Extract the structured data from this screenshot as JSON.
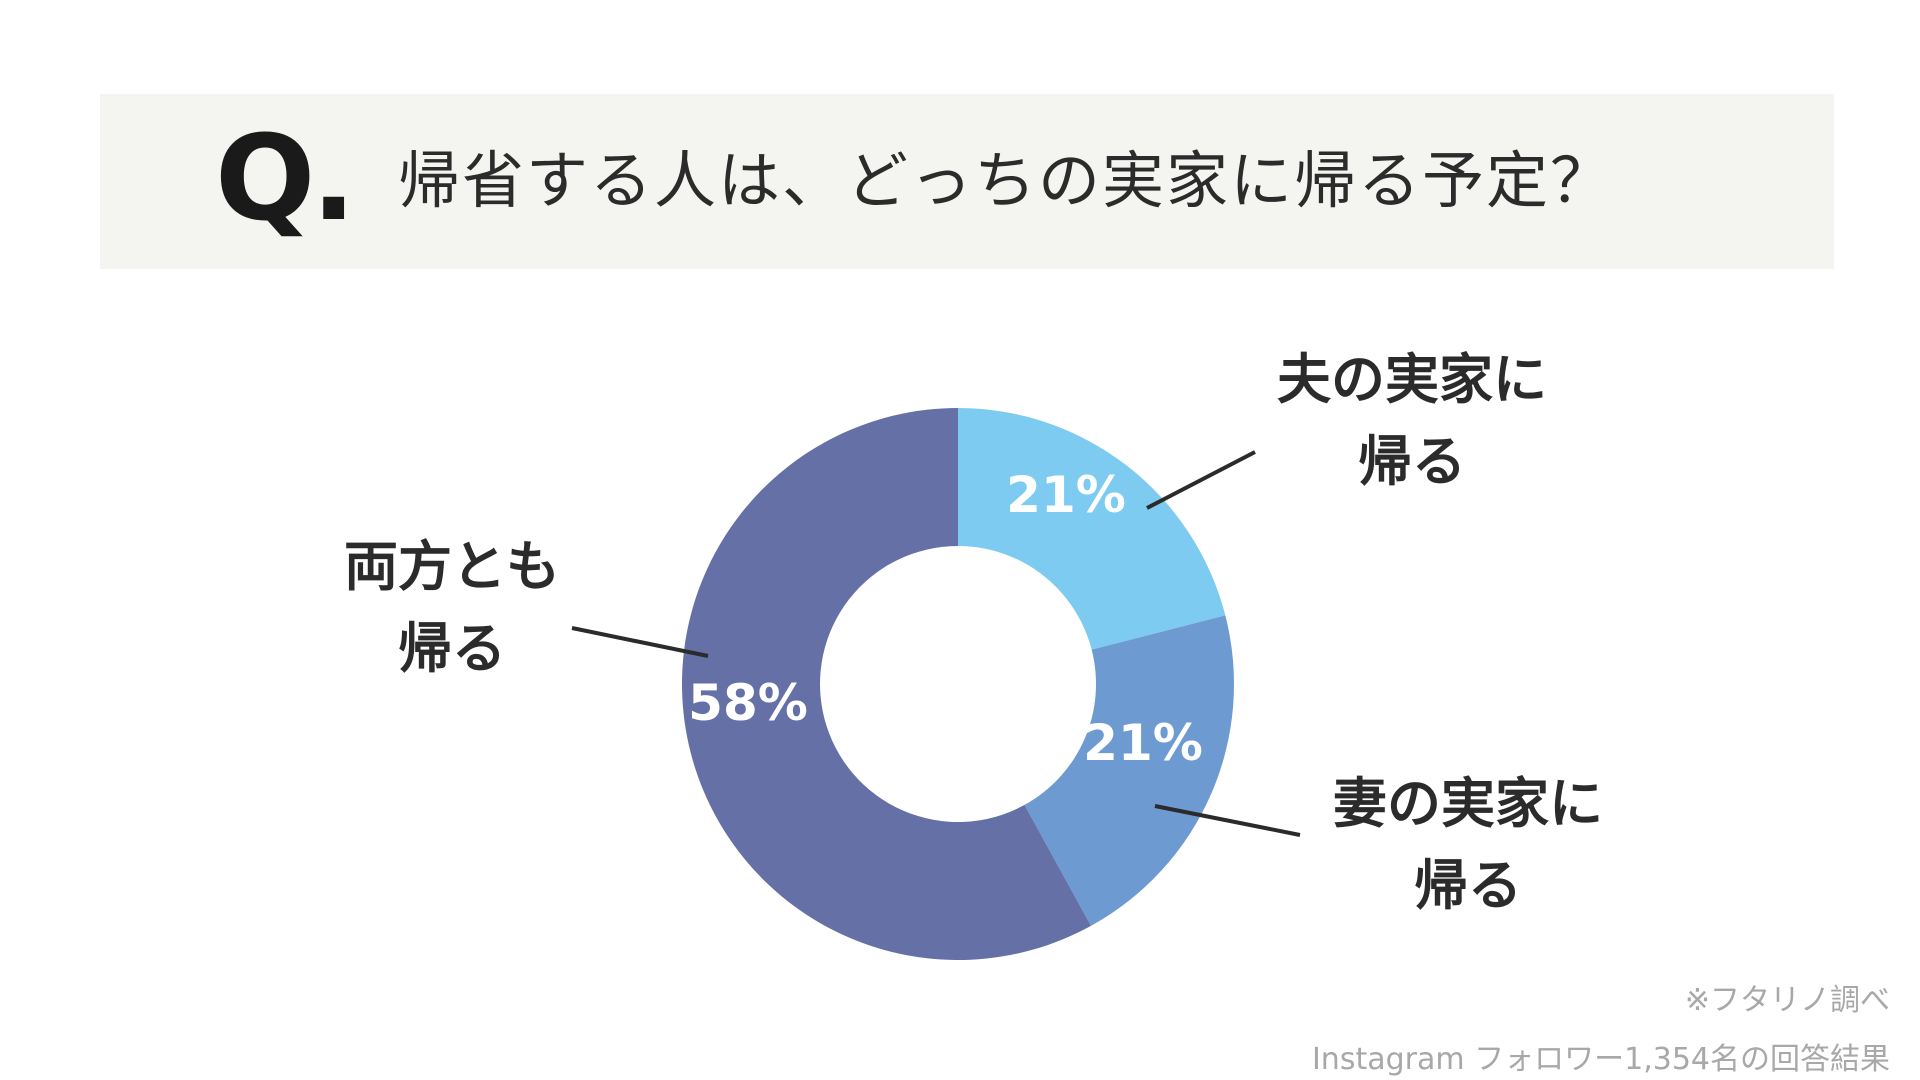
{
  "header": {
    "q_mark": "Q.",
    "question": "帰省する人は、どっちの実家に帰る予定？"
  },
  "chart_data": {
    "type": "pie",
    "donut": true,
    "title": "帰省する人は、どっちの実家に帰る予定？",
    "slices": [
      {
        "label_lines": [
          "夫の実家に",
          "帰る"
        ],
        "value": 21,
        "value_label": "21%",
        "color": "#7ecbf2"
      },
      {
        "label_lines": [
          "妻の実家に",
          "帰る"
        ],
        "value": 21,
        "value_label": "21%",
        "color": "#6d9bd1"
      },
      {
        "label_lines": [
          "両方とも",
          "帰る"
        ],
        "value": 58,
        "value_label": "58%",
        "color": "#6470a6"
      }
    ],
    "start_angle_deg": 0,
    "direction": "clockwise",
    "label_color": "#2b2b2b",
    "value_label_color": "#ffffff"
  },
  "footnotes": {
    "source": "※フタリノ調べ",
    "sample": "Instagram フォロワー1,354名の回答結果"
  }
}
